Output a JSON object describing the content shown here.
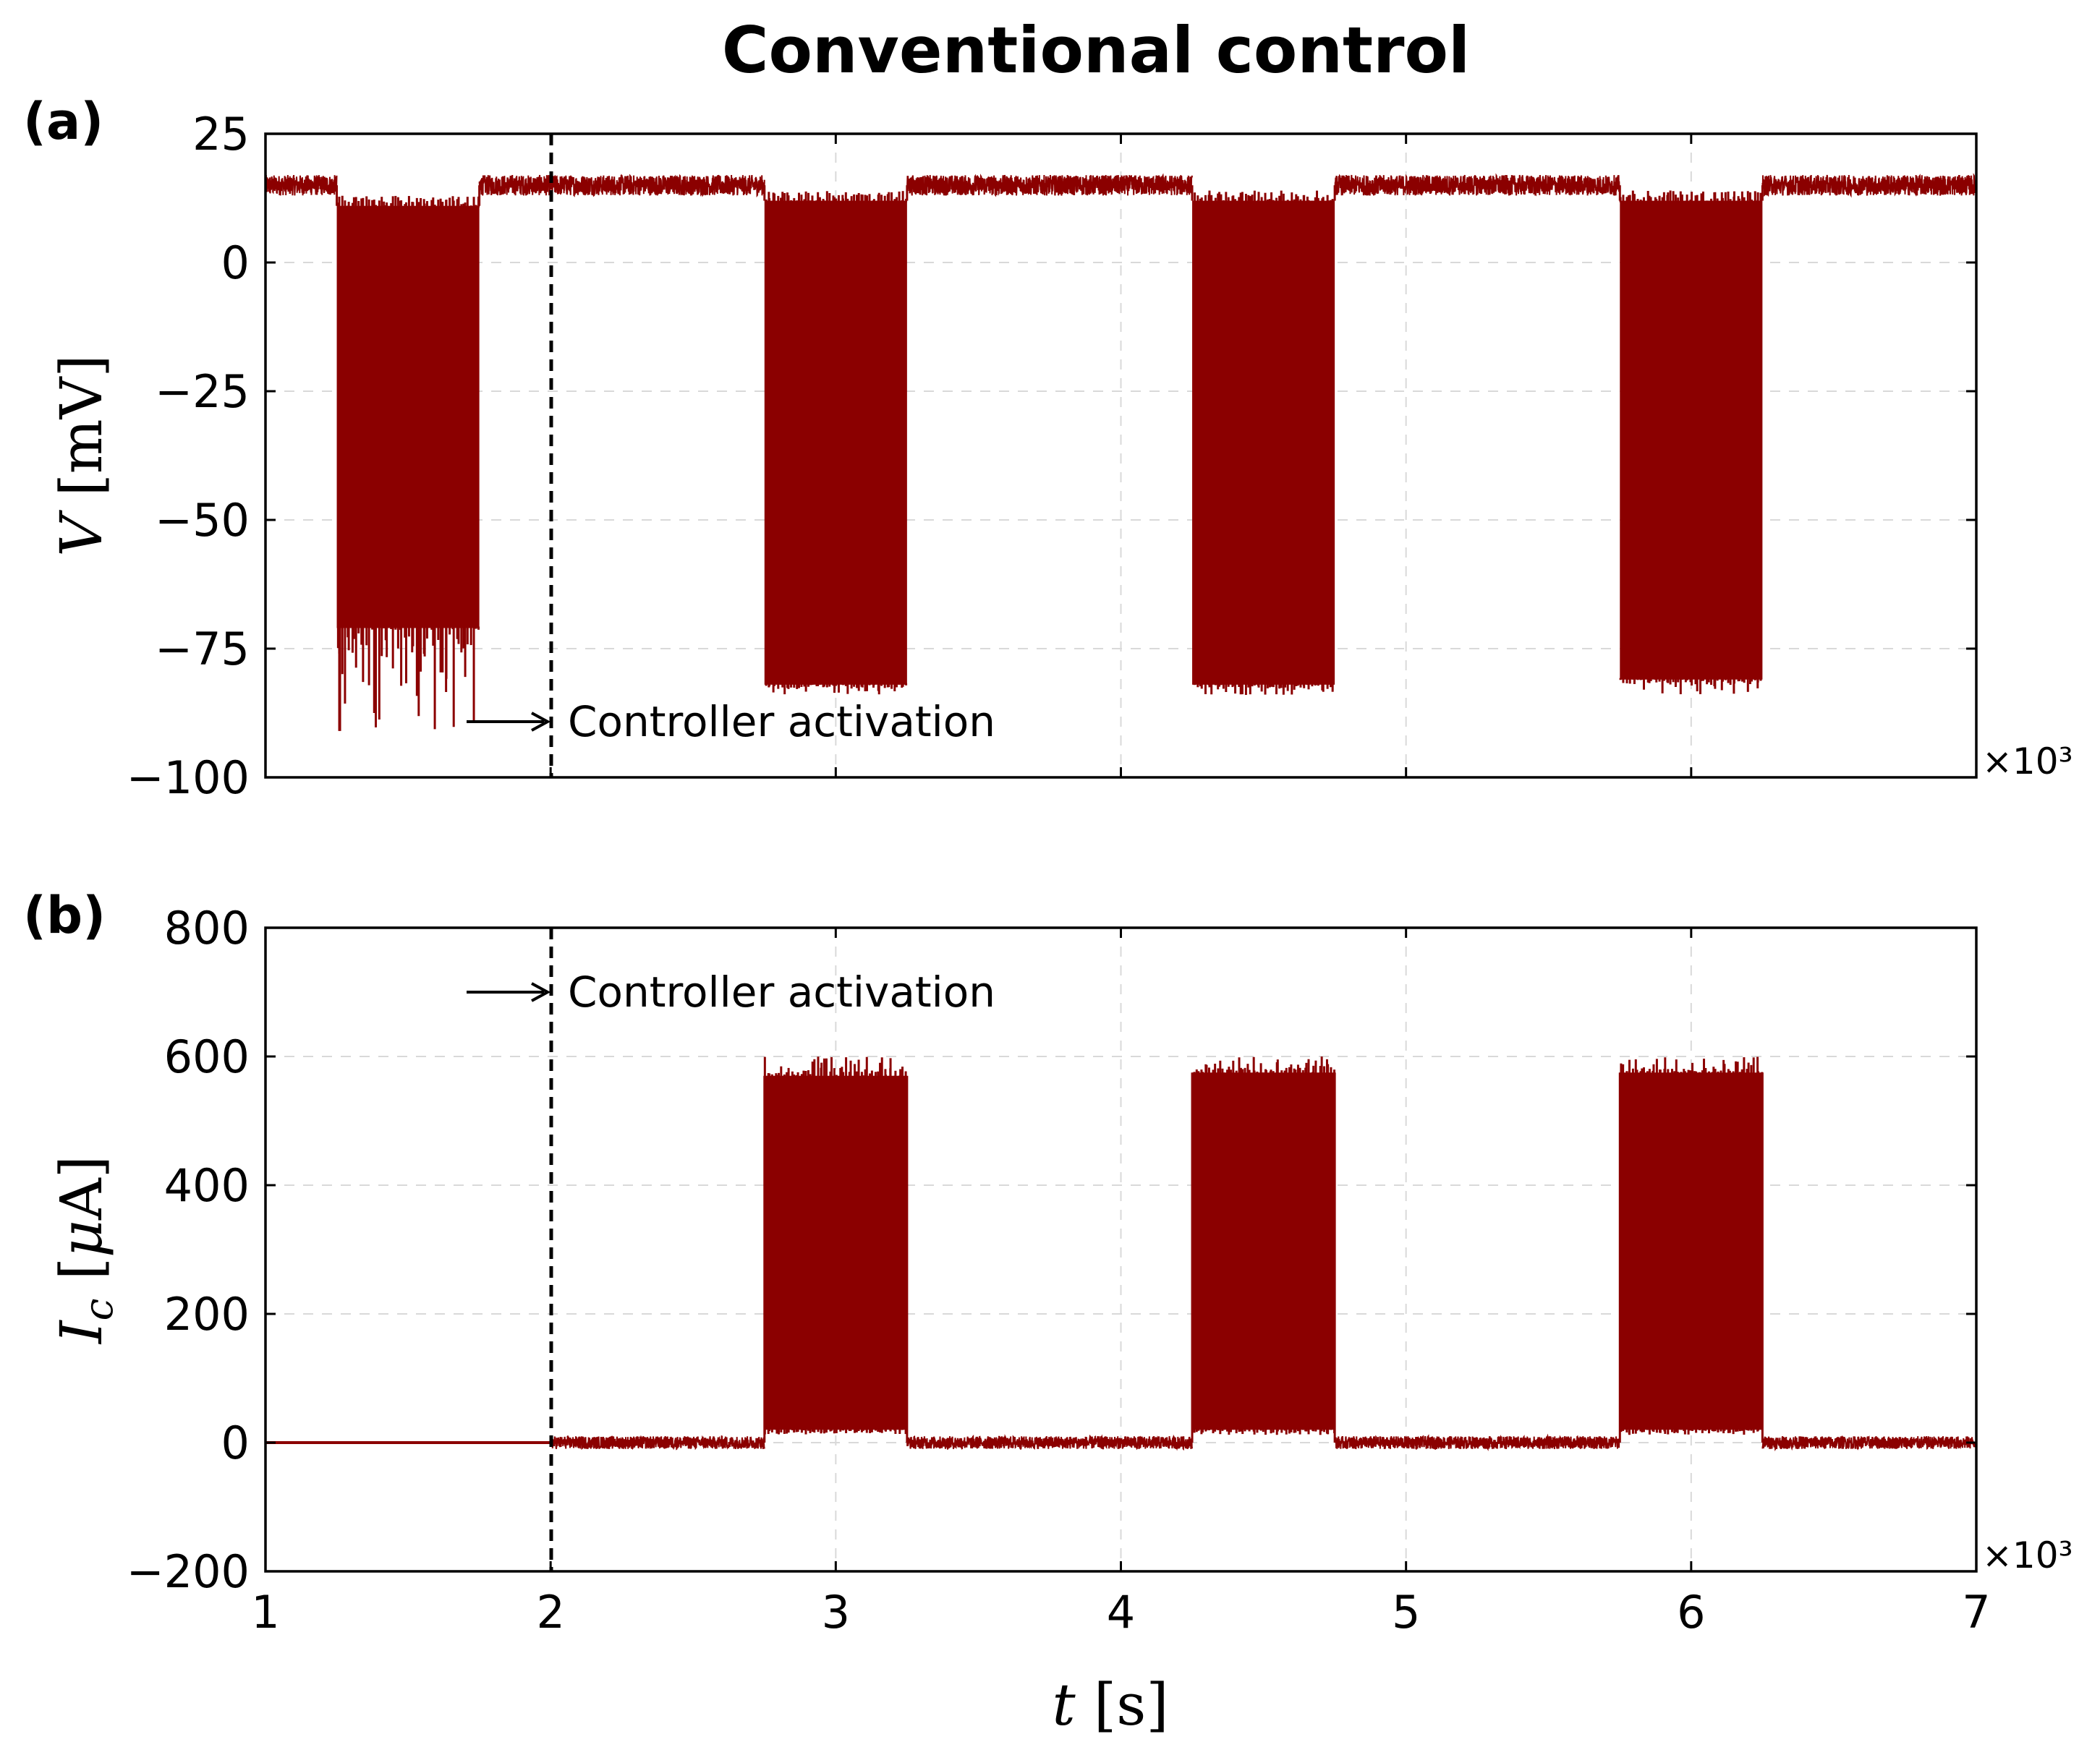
{
  "figure": {
    "title": "Conventional control",
    "x_multiplier": "×10³",
    "annotation": "Controller activation"
  },
  "chart_data": [
    {
      "type": "line",
      "panel_label": "(a)",
      "title": "Conventional control",
      "xlabel": "t [s]",
      "ylabel": "V [mV]",
      "xlim": [
        1,
        7
      ],
      "ylim": [
        -100,
        25
      ],
      "x_scale_note": "×10³",
      "xticks": [
        1,
        2,
        3,
        4,
        5,
        6,
        7
      ],
      "yticks": [
        -100,
        -75,
        -50,
        -25,
        0,
        25
      ],
      "ytick_labels": [
        "−100",
        "−75",
        "−50",
        "−25",
        "0",
        "25"
      ],
      "grid": true,
      "series": [
        {
          "name": "V",
          "color": "#8b0000",
          "baseline": 15,
          "baseline_noise": 2,
          "burst_segments": [
            {
              "x_start": 1.25,
              "x_end": 1.75,
              "upper": 11,
              "lower": -71,
              "spike_min": -91
            },
            {
              "x_start": 2.75,
              "x_end": 3.25,
              "upper": 12,
              "lower": -82,
              "spike_min": -84
            },
            {
              "x_start": 4.25,
              "x_end": 4.75,
              "upper": 12,
              "lower": -82,
              "spike_min": -84
            },
            {
              "x_start": 5.75,
              "x_end": 6.25,
              "upper": 12,
              "lower": -81,
              "spike_min": -84
            }
          ]
        }
      ],
      "annotation": {
        "text": "Controller activation",
        "x": 2,
        "style": "dashed vertical line with arrow"
      }
    },
    {
      "type": "line",
      "panel_label": "(b)",
      "xlabel": "t [s]",
      "ylabel": "I_c [μA]",
      "xlim": [
        1,
        7
      ],
      "ylim": [
        -200,
        800
      ],
      "x_scale_note": "×10³",
      "xticks": [
        1,
        2,
        3,
        4,
        5,
        6,
        7
      ],
      "xtick_labels": [
        "1",
        "2",
        "3",
        "4",
        "5",
        "6",
        "7"
      ],
      "yticks": [
        -200,
        0,
        200,
        400,
        600,
        800
      ],
      "ytick_labels": [
        "−200",
        "0",
        "200",
        "400",
        "600",
        "800"
      ],
      "grid": true,
      "series": [
        {
          "name": "I_c",
          "color": "#8b0000",
          "pre_activation_value": 0,
          "baseline": 0,
          "baseline_noise": 10,
          "burst_segments": [
            {
              "x_start": 2.75,
              "x_end": 3.25,
              "upper": 570,
              "lower": 20,
              "spike_max": 600
            },
            {
              "x_start": 4.25,
              "x_end": 4.75,
              "upper": 575,
              "lower": 20,
              "spike_max": 600
            },
            {
              "x_start": 5.75,
              "x_end": 6.25,
              "upper": 575,
              "lower": 20,
              "spike_max": 600
            }
          ]
        }
      ],
      "annotation": {
        "text": "Controller activation",
        "x": 2,
        "style": "dashed vertical line with arrow"
      }
    }
  ]
}
